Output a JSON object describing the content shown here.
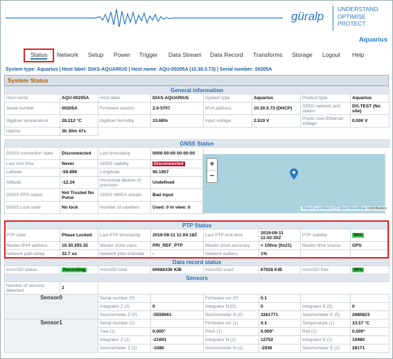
{
  "header": {
    "logo": "güralp",
    "tagline": [
      "UNDERSTAND",
      "OPTIMISE",
      "PROTECT"
    ],
    "device": "Aquarius"
  },
  "nav": [
    "Status",
    "Network",
    "Setup",
    "Power",
    "Trigger",
    "Data Stream",
    "Data Record",
    "Transforms",
    "Storage",
    "Logout",
    "Help"
  ],
  "system_line": "System type: Aquarius | Host label: DIAS-AQUARIUS | Host name: AQU-00205A (10.30.0.73) | Serial number: 00205A",
  "status_title": "System Status",
  "general": {
    "title": "General information",
    "rows": [
      [
        "Host name",
        "AQU-00205A",
        "Host label",
        "DIAS-AQUARIUS",
        "System type",
        "Aquarius",
        "Product type",
        "Aquarius"
      ],
      [
        "Serial number",
        "00205A",
        "Firmware version",
        "2.0-5707",
        "IPv4 address",
        "10.30.0.73 (DHCP)",
        "SEED network and station",
        "DG.TEST (No site)"
      ],
      [
        "Digitiser temperature",
        "29.212 °C",
        "Digitiser humidity",
        "33.68%",
        "Input voltage",
        "2.510 V",
        "Power over Ethernet voltage",
        "0.000 V"
      ],
      [
        "Uptime",
        "3h 30m 47s",
        "",
        "",
        "",
        "",
        "",
        ""
      ]
    ]
  },
  "gnss": {
    "title": "GNSS Status",
    "rows": [
      [
        "GNSS connection state",
        "Disconnected",
        "Last timestamp",
        "0000-00-00 00:00:00"
      ],
      [
        "Last lock time",
        "Never",
        "GNSS stability",
        "Disconnected"
      ],
      [
        "Latitude",
        "-59.899",
        "Longitude",
        "90.1957"
      ],
      [
        "Altitude",
        "-12.34",
        "Horizontal dilution of precision",
        "Undefined"
      ],
      [
        "GNSS PPS status",
        "Not Trusted No Pulse",
        "GNSS NMEA stream",
        "Bad input"
      ],
      [
        "GNSS Lock state",
        "No lock",
        "Number of satellites",
        "Used: 0 In view: 0"
      ]
    ],
    "map": {
      "zoom_in": "+",
      "zoom_out": "−",
      "attribution_link": "Report a problem",
      "attribution_osm": "© OpenStreetMap",
      "attribution_rest": " contributors"
    }
  },
  "ptp": {
    "title": "PTP Status",
    "rows": [
      [
        "PTP state",
        "Phase Locked",
        "Last PTP timestamp",
        "2019-09-11 11:04:18Z",
        "Last PTP lock time",
        "2019-09-11 11:02:30Z",
        "PTP stability",
        "99%"
      ],
      [
        "Master IPv4 address",
        "10.30.255.35",
        "Master clock class",
        "PRI_REF_PTP",
        "Master clock accuracy",
        "< 100ns (0x21)",
        "Master time source",
        "GPS"
      ],
      [
        "Network path delay",
        "32.7 us",
        "Network jitter estimate",
        "-",
        "Network outliers",
        "1%",
        "",
        ""
      ]
    ]
  },
  "record": {
    "title": "Data record status",
    "rows": [
      [
        "microSD status",
        "Recording",
        "microSD total",
        "60686336 KiB",
        "microSD used",
        "67928 KiB",
        "microSD free",
        "99%"
      ]
    ]
  },
  "sensors": {
    "title": "Sensors",
    "count_label": "Number of sensors detected",
    "count": "2",
    "sensor0": {
      "name": "Sensor0",
      "rows": [
        [
          "Serial number (0)",
          "",
          "Firmware ver (0)",
          "0.1",
          "",
          ""
        ],
        [
          "Integrator Z (0)",
          "0",
          "Integrator N (0)",
          "0",
          "Integrator E (0)",
          "0"
        ],
        [
          "Seismometer Z (0)",
          "-5559061",
          "Seismometer N (0)",
          "3261771",
          "Seismometer E (0)",
          "2680823"
        ]
      ]
    },
    "sensor1": {
      "name": "Sensor1",
      "rows": [
        [
          "Serial number (1)",
          "",
          "Firmware ver (1)",
          "0.1",
          "Temperature (1)",
          "33.57 °C"
        ],
        [
          "Yaw (1)",
          "0.000°",
          "Pitch (1)",
          "0.000°",
          "Roll (1)",
          "0.000°"
        ],
        [
          "Integrator Z (1)",
          "-21691",
          "Integrator N (1)",
          "12752",
          "Integrator E (1)",
          "10480"
        ],
        [
          "Seismometer Z (1)",
          "-1080",
          "Seismometer N (1)",
          "-2936",
          "Seismometer E (1)",
          "28171"
        ]
      ]
    }
  },
  "colors": {
    "accent": "#2a78c0",
    "highlight": "#e02020",
    "ok": "#3bd04a",
    "error": "#c0102a"
  }
}
